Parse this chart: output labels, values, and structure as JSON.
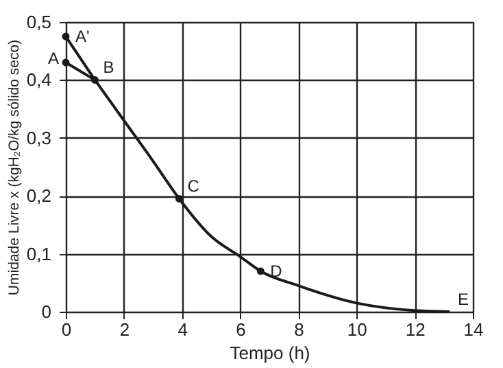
{
  "chart_data": {
    "type": "line",
    "xlabel": "Tempo (h)",
    "ylabel": "Umidade Livre x (kgH₂O/kg sólido seco)",
    "xlim": [
      0,
      14
    ],
    "xticks": [
      0,
      2,
      4,
      6,
      8,
      10,
      12,
      14
    ],
    "ylim": [
      0,
      0.5
    ],
    "yticks": [
      {
        "value": 0,
        "label": "0"
      },
      {
        "value": 0.1,
        "label": "0,1"
      },
      {
        "value": 0.2,
        "label": "0,2"
      },
      {
        "value": 0.3,
        "label": "0,3"
      },
      {
        "value": 0.4,
        "label": "0,4"
      },
      {
        "value": 0.5,
        "label": "0,5"
      }
    ],
    "grid": true,
    "line_style": "solid",
    "marker": "none",
    "series": [
      {
        "type": "line",
        "color": "#1a1a1a",
        "x": [
          0,
          1
        ],
        "values": [
          0.475,
          0.4
        ]
      },
      {
        "type": "line",
        "color": "#1a1a1a",
        "x": [
          0,
          1
        ],
        "values": [
          0.43,
          0.4
        ]
      },
      {
        "type": "line",
        "color": "#1a1a1a",
        "x": [
          1,
          2,
          3,
          3.9,
          5,
          6,
          6.7,
          8,
          10,
          12,
          13.2
        ],
        "values": [
          0.4,
          0.33,
          0.26,
          0.195,
          0.13,
          0.095,
          0.07,
          0.045,
          0.015,
          0.002,
          0
        ]
      },
      {
        "type": "scatter",
        "marker": "circle",
        "color": "#1a1a1a",
        "x": [
          0,
          0,
          1,
          3.9,
          6.7
        ],
        "values": [
          0.475,
          0.43,
          0.4,
          0.195,
          0.07
        ]
      }
    ],
    "annotations": [
      {
        "text": "A'",
        "x": 0,
        "y": 0.475
      },
      {
        "text": "A",
        "x": 0,
        "y": 0.43
      },
      {
        "text": "B",
        "x": 1,
        "y": 0.4
      },
      {
        "text": "C",
        "x": 3.9,
        "y": 0.195
      },
      {
        "text": "D",
        "x": 6.7,
        "y": 0.07
      },
      {
        "text": "E",
        "x": 13.2,
        "y": 0
      }
    ]
  }
}
